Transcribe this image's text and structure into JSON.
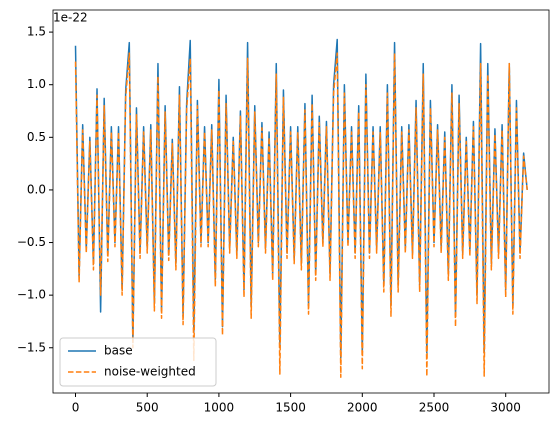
{
  "chart_data": {
    "type": "line",
    "y_offset_label": "1e-22",
    "x": [
      0,
      25,
      50,
      75,
      100,
      125,
      150,
      175,
      200,
      225,
      250,
      275,
      300,
      325,
      350,
      375,
      400,
      425,
      450,
      475,
      500,
      525,
      550,
      575,
      600,
      625,
      650,
      675,
      700,
      725,
      750,
      775,
      800,
      825,
      850,
      875,
      900,
      925,
      950,
      975,
      1000,
      1025,
      1050,
      1075,
      1100,
      1125,
      1150,
      1175,
      1200,
      1225,
      1250,
      1275,
      1300,
      1325,
      1350,
      1375,
      1400,
      1425,
      1450,
      1475,
      1500,
      1525,
      1550,
      1575,
      1600,
      1625,
      1650,
      1675,
      1700,
      1725,
      1750,
      1775,
      1800,
      1825,
      1850,
      1875,
      1900,
      1925,
      1950,
      1975,
      2000,
      2025,
      2050,
      2075,
      2100,
      2125,
      2150,
      2175,
      2200,
      2225,
      2250,
      2275,
      2300,
      2325,
      2350,
      2375,
      2400,
      2425,
      2450,
      2475,
      2500,
      2525,
      2550,
      2575,
      2600,
      2625,
      2650,
      2675,
      2700,
      2725,
      2750,
      2775,
      2800,
      2825,
      2850,
      2875,
      2900,
      2925,
      2950,
      2975,
      3000,
      3025,
      3050,
      3075,
      3100,
      3125,
      3150
    ],
    "series": [
      {
        "name": "base",
        "color": "#1f77b4",
        "dash": false,
        "values": [
          1.37,
          -0.82,
          0.62,
          -0.56,
          0.5,
          -0.7,
          0.96,
          -1.16,
          0.87,
          -0.62,
          0.6,
          -0.5,
          0.6,
          -0.95,
          0.95,
          1.4,
          -1.45,
          0.78,
          -0.6,
          0.6,
          -0.55,
          0.62,
          -1.08,
          1.2,
          -1.15,
          0.8,
          -0.62,
          0.48,
          -0.7,
          0.98,
          -1.2,
          0.82,
          1.42,
          -1.35,
          0.85,
          -0.5,
          0.6,
          -0.5,
          0.62,
          -0.85,
          1.05,
          -1.3,
          0.9,
          -0.55,
          0.5,
          -0.6,
          0.75,
          -0.95,
          1.4,
          -1.1,
          0.8,
          -0.5,
          0.64,
          -0.55,
          0.55,
          -0.8,
          1.2,
          -1.5,
          0.95,
          -0.6,
          0.6,
          -0.65,
          0.6,
          -0.7,
          0.82,
          -1.1,
          0.9,
          -0.8,
          0.7,
          -0.5,
          0.65,
          -0.8,
          1.0,
          1.43,
          -1.6,
          1.0,
          -0.5,
          0.6,
          -0.6,
          0.8,
          -1.55,
          1.1,
          -0.6,
          0.6,
          -0.55,
          0.6,
          -0.9,
          1.0,
          -1.1,
          1.4,
          -0.9,
          0.6,
          -0.55,
          0.62,
          -0.6,
          0.85,
          -0.9,
          1.2,
          -1.55,
          0.85,
          -0.5,
          0.62,
          -0.55,
          0.55,
          -0.8,
          1.0,
          -1.2,
          0.9,
          -0.6,
          0.5,
          -0.58,
          0.65,
          -1.0,
          1.39,
          -1.55,
          1.2,
          -0.7,
          0.58,
          -0.6,
          0.62,
          -0.95,
          1.2,
          -1.1,
          0.85,
          -0.6,
          0.35,
          0.0
        ]
      },
      {
        "name": "noise-weighted",
        "color": "#ff7f0e",
        "dash": true,
        "values": [
          1.22,
          -0.88,
          0.57,
          -0.6,
          0.46,
          -0.76,
          0.9,
          -1.0,
          0.8,
          -0.68,
          0.55,
          -0.54,
          0.55,
          -1.0,
          0.88,
          1.3,
          -1.5,
          0.72,
          -0.65,
          0.55,
          -0.6,
          0.57,
          -1.15,
          1.08,
          -1.22,
          0.74,
          -0.67,
          0.44,
          -0.76,
          0.9,
          -1.28,
          0.76,
          1.25,
          -1.62,
          0.8,
          -0.54,
          0.55,
          -0.54,
          0.57,
          -0.92,
          0.95,
          -1.38,
          0.82,
          -0.6,
          0.46,
          -0.65,
          0.7,
          -1.02,
          1.25,
          -1.22,
          0.74,
          -0.54,
          0.59,
          -0.6,
          0.5,
          -0.86,
          1.1,
          -1.75,
          0.88,
          -0.65,
          0.55,
          -0.7,
          0.55,
          -0.76,
          0.76,
          -1.18,
          0.82,
          -0.86,
          0.64,
          -0.54,
          0.6,
          -0.86,
          0.92,
          1.3,
          -1.78,
          0.92,
          -0.54,
          0.55,
          -0.65,
          0.74,
          -1.7,
          1.0,
          -0.65,
          0.55,
          -0.6,
          0.55,
          -0.97,
          0.92,
          -1.2,
          1.3,
          -0.97,
          0.55,
          -0.6,
          0.57,
          -0.65,
          0.78,
          -0.97,
          1.1,
          -1.77,
          0.78,
          -0.54,
          0.57,
          -0.6,
          0.5,
          -0.86,
          0.92,
          -1.3,
          0.82,
          -0.65,
          0.46,
          -0.63,
          0.6,
          -1.08,
          1.2,
          -1.77,
          1.1,
          -0.76,
          0.53,
          -0.65,
          0.57,
          -1.02,
          1.2,
          -1.18,
          0.78,
          -0.65,
          0.32,
          0.0
        ]
      }
    ],
    "xlim": [
      -157,
      3302
    ],
    "xticks": [
      0,
      500,
      1000,
      1500,
      2000,
      2500,
      3000
    ],
    "ylim": [
      -1.93,
      1.71
    ],
    "yticks": [
      {
        "value": -1.5,
        "label": "−1.5"
      },
      {
        "value": -1.0,
        "label": "−1.0"
      },
      {
        "value": -0.5,
        "label": "−0.5"
      },
      {
        "value": 0,
        "label": "0.0"
      },
      {
        "value": 0.5,
        "label": "0.5"
      },
      {
        "value": 1.0,
        "label": "1.0"
      },
      {
        "value": 1.5,
        "label": "1.5"
      }
    ],
    "legend": "lower left"
  }
}
